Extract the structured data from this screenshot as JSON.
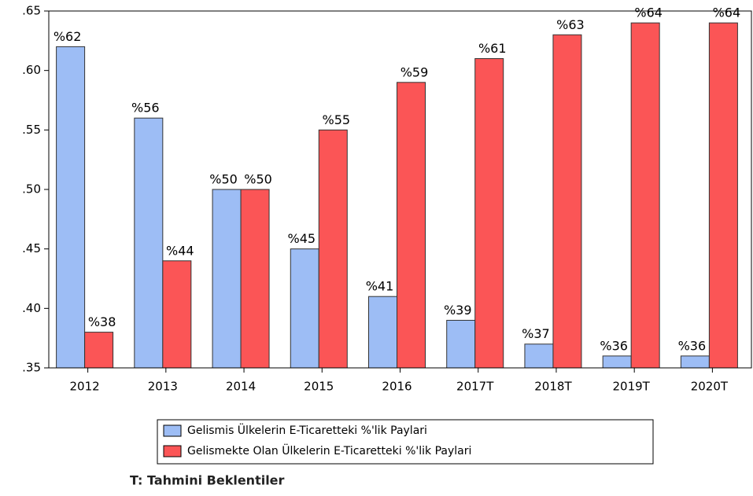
{
  "chart_data": {
    "type": "bar",
    "categories": [
      "2012",
      "2013",
      "2014",
      "2015",
      "2016",
      "2017T",
      "2018T",
      "2019T",
      "2020T"
    ],
    "series": [
      {
        "name": "Gelismis Ülkelerin E-Ticaretteki %'lik Paylari",
        "color": "#9dbdf5",
        "values": [
          0.62,
          0.56,
          0.5,
          0.45,
          0.41,
          0.39,
          0.37,
          0.36,
          0.36
        ],
        "value_labels": [
          "%62",
          "%56",
          "%50",
          "%45",
          "%41",
          "%39",
          "%37",
          "%36",
          "%36"
        ]
      },
      {
        "name": "Gelismekte Olan Ülkelerin E-Ticaretteki %'lik Paylari",
        "color": "#fb5556",
        "values": [
          0.38,
          0.44,
          0.5,
          0.55,
          0.59,
          0.61,
          0.63,
          0.64,
          0.64
        ],
        "value_labels": [
          "%38",
          "%44",
          "%50",
          "%55",
          "%59",
          "%61",
          "%63",
          "%64",
          "%64"
        ]
      }
    ],
    "ylim": [
      0.35,
      0.65
    ],
    "yticks": [
      {
        "value": 0.35,
        "label": ".35"
      },
      {
        "value": 0.4,
        "label": ".40"
      },
      {
        "value": 0.45,
        "label": ".45"
      },
      {
        "value": 0.5,
        "label": ".50"
      },
      {
        "value": 0.55,
        "label": ".55"
      },
      {
        "value": 0.6,
        "label": ".60"
      },
      {
        "value": 0.65,
        "label": ".65"
      }
    ],
    "legend": "bottom",
    "annotation": "T: Tahmini Beklentiler"
  }
}
